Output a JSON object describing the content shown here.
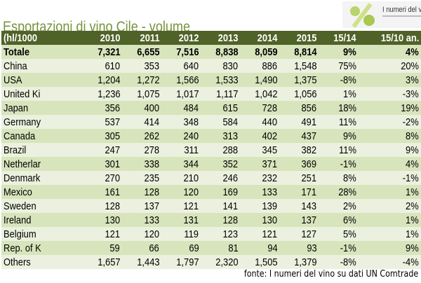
{
  "title": "Esportazioni di vino Cile - volume",
  "logo": {
    "text": "I numeri del vino"
  },
  "table": {
    "headers": [
      "(hl/1000",
      "2010",
      "2011",
      "2012",
      "2013",
      "2014",
      "2015",
      "15/14",
      "15/10 an."
    ],
    "total": [
      "Totale",
      "7,321",
      "6,655",
      "7,516",
      "8,838",
      "8,059",
      "8,814",
      "9%",
      "4%"
    ],
    "rows": [
      [
        "China",
        "610",
        "353",
        "640",
        "830",
        "886",
        "1,548",
        "75%",
        "20%"
      ],
      [
        "USA",
        "1,204",
        "1,272",
        "1,566",
        "1,533",
        "1,490",
        "1,375",
        "-8%",
        "3%"
      ],
      [
        "United Ki",
        "1,236",
        "1,075",
        "1,017",
        "1,117",
        "1,042",
        "1,056",
        "1%",
        "-3%"
      ],
      [
        "Japan",
        "356",
        "400",
        "484",
        "615",
        "728",
        "856",
        "18%",
        "19%"
      ],
      [
        "Germany",
        "537",
        "414",
        "348",
        "584",
        "440",
        "491",
        "11%",
        "-2%"
      ],
      [
        "Canada",
        "305",
        "262",
        "240",
        "313",
        "402",
        "437",
        "9%",
        "8%"
      ],
      [
        "Brazil",
        "247",
        "278",
        "311",
        "288",
        "345",
        "382",
        "11%",
        "9%"
      ],
      [
        "Netherlar",
        "301",
        "338",
        "344",
        "352",
        "371",
        "369",
        "-1%",
        "4%"
      ],
      [
        "Denmark",
        "270",
        "235",
        "210",
        "246",
        "232",
        "251",
        "8%",
        "-1%"
      ],
      [
        "Mexico",
        "161",
        "128",
        "120",
        "169",
        "133",
        "171",
        "28%",
        "1%"
      ],
      [
        "Sweden",
        "128",
        "137",
        "121",
        "141",
        "139",
        "143",
        "2%",
        "2%"
      ],
      [
        "Ireland",
        "130",
        "133",
        "131",
        "128",
        "130",
        "137",
        "6%",
        "1%"
      ],
      [
        "Belgium",
        "121",
        "120",
        "119",
        "123",
        "121",
        "127",
        "5%",
        "1%"
      ],
      [
        "Rep. of K",
        "59",
        "66",
        "69",
        "81",
        "94",
        "93",
        "-1%",
        "9%"
      ],
      [
        "Others",
        "1,657",
        "1,443",
        "1,797",
        "2,320",
        "1,505",
        "1,379",
        "-8%",
        "-4%"
      ]
    ]
  },
  "source": "fonte: I numeri del vino su dati UN Comtrade",
  "colors": {
    "header_bg": "#4f6228",
    "title": "#77933c",
    "row_light": "#ebf1de",
    "row_dark": "#d8e4bc"
  }
}
